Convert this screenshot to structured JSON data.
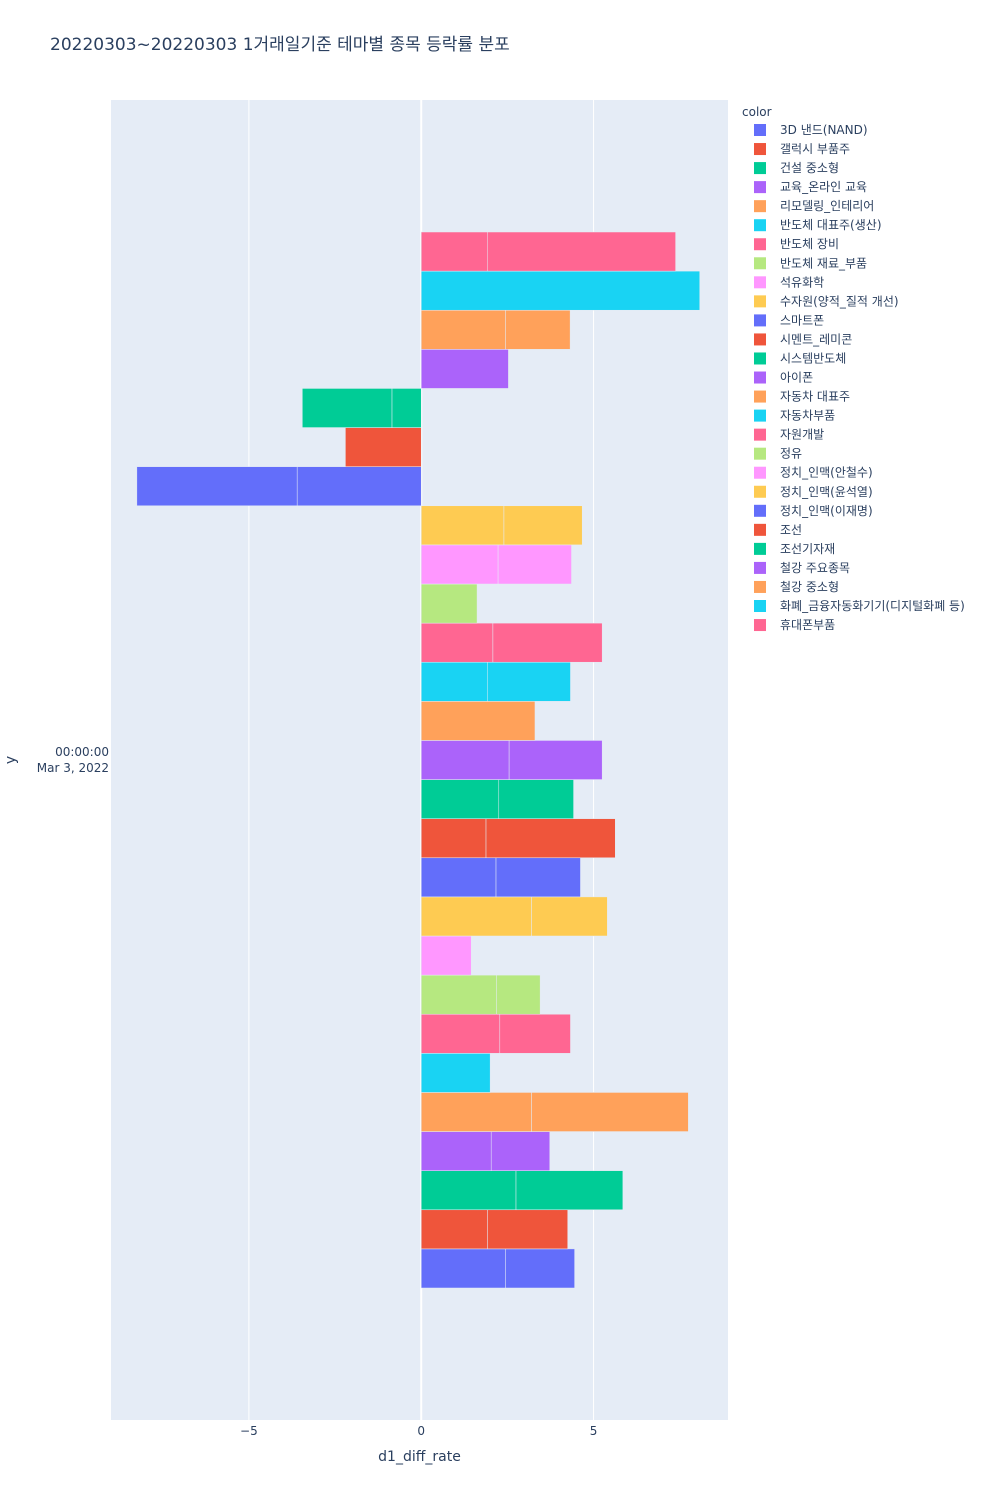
{
  "chart_data": {
    "type": "bar",
    "orientation": "horizontal",
    "barmode": "group",
    "title": "20220303~20220303 1거래일기준 테마별 종목 등락률 분포",
    "xlabel": "d1_diff_rate",
    "ylabel": "y",
    "y_category": "00:00:00\nMar 3, 2022",
    "y_category_lines": [
      "00:00:00",
      "Mar 3, 2022"
    ],
    "xlim": [
      -9.0,
      8.9
    ],
    "x_ticks": [
      -5,
      0,
      5
    ],
    "x_tick_labels": [
      "−5",
      "0",
      "5"
    ],
    "grid": true,
    "legend_title": "color",
    "legend_position": "right",
    "series": [
      {
        "name": "3D 낸드(NAND)",
        "color": "#636efa",
        "segments": [
          2.45,
          2.0
        ]
      },
      {
        "name": "갤럭시 부품주",
        "color": "#EF553B",
        "segments": [
          1.92,
          2.33
        ]
      },
      {
        "name": "건설 중소형",
        "color": "#00cc96",
        "segments": [
          2.75,
          3.1
        ]
      },
      {
        "name": "교육_온라인 교육",
        "color": "#ab63fa",
        "segments": [
          2.03,
          1.7
        ]
      },
      {
        "name": "리모델링_인테리어",
        "color": "#FFA15A",
        "segments": [
          3.2,
          4.55
        ]
      },
      {
        "name": "반도체 대표주(생산)",
        "color": "#19d3f3",
        "segments": [
          2.0
        ]
      },
      {
        "name": "반도체 장비",
        "color": "#FF6692",
        "segments": [
          2.28,
          2.05
        ]
      },
      {
        "name": "반도체 재료_부품",
        "color": "#B6E880",
        "segments": [
          2.18,
          1.27
        ]
      },
      {
        "name": "석유화학",
        "color": "#FF97FF",
        "segments": [
          1.45
        ]
      },
      {
        "name": "수자원(양적_질적 개선)",
        "color": "#FECB52",
        "segments": [
          3.2,
          2.2
        ]
      },
      {
        "name": "스마트폰",
        "color": "#636efa",
        "segments": [
          2.17,
          2.45
        ]
      },
      {
        "name": "시멘트_레미콘",
        "color": "#EF553B",
        "segments": [
          1.88,
          3.75
        ]
      },
      {
        "name": "시스템반도체",
        "color": "#00cc96",
        "segments": [
          2.25,
          2.17
        ]
      },
      {
        "name": "아이폰",
        "color": "#ab63fa",
        "segments": [
          2.55,
          2.7
        ]
      },
      {
        "name": "자동차 대표주",
        "color": "#FFA15A",
        "segments": [
          3.3
        ]
      },
      {
        "name": "자동차부품",
        "color": "#19d3f3",
        "segments": [
          1.93,
          2.4
        ]
      },
      {
        "name": "자원개발",
        "color": "#FF6692",
        "segments": [
          2.08,
          3.17
        ]
      },
      {
        "name": "정유",
        "color": "#B6E880",
        "segments": [
          1.62
        ]
      },
      {
        "name": "정치_인맥(안철수)",
        "color": "#FF97FF",
        "segments": [
          2.23,
          2.13
        ]
      },
      {
        "name": "정치_인맥(윤석열)",
        "color": "#FECB52",
        "segments": [
          2.4,
          2.27
        ]
      },
      {
        "name": "정치_인맥(이재명)",
        "color": "#636efa",
        "segments": [
          -3.6,
          -4.65
        ]
      },
      {
        "name": "조선",
        "color": "#EF553B",
        "segments": [
          -2.2
        ]
      },
      {
        "name": "조선기자재",
        "color": "#00cc96",
        "segments": [
          -0.85,
          -2.6
        ]
      },
      {
        "name": "철강 주요종목",
        "color": "#ab63fa",
        "segments": [
          2.53
        ]
      },
      {
        "name": "철강 중소형",
        "color": "#FFA15A",
        "segments": [
          2.45,
          1.87
        ]
      },
      {
        "name": "화폐_금융자동화기기(디지털화폐 등)",
        "color": "#19d3f3",
        "segments": [
          8.08
        ]
      },
      {
        "name": "휴대폰부품",
        "color": "#FF6692",
        "segments": [
          1.93,
          5.45
        ]
      }
    ]
  }
}
